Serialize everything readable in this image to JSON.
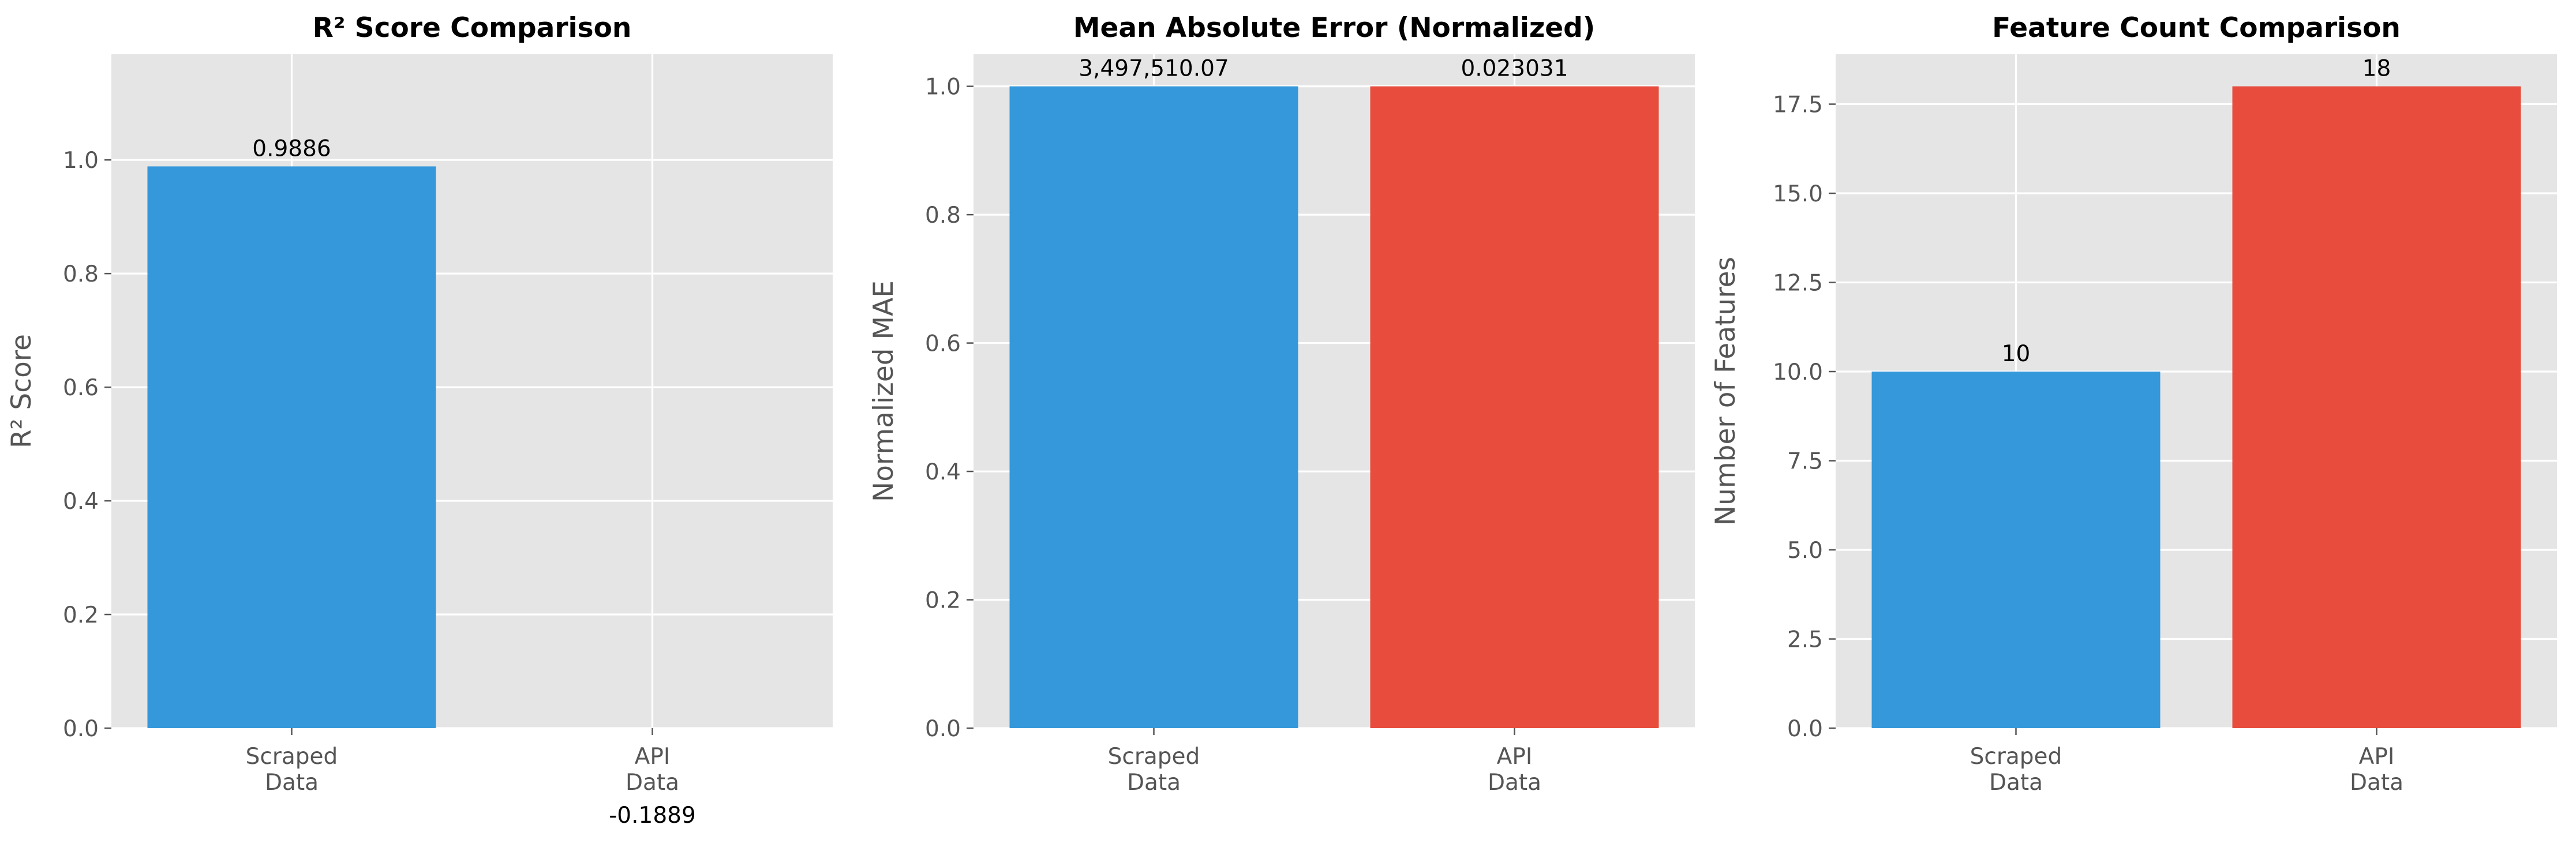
{
  "chart_data": [
    {
      "type": "bar",
      "title": "R² Score Comparison",
      "xlabel": "",
      "ylabel": "R² Score",
      "categories": [
        "Scraped Data",
        "API Data"
      ],
      "category_lines": [
        [
          "Scraped",
          "Data"
        ],
        [
          "API",
          "Data"
        ]
      ],
      "values": [
        0.9886,
        -0.1889
      ],
      "data_labels": [
        "0.9886",
        "-0.1889"
      ],
      "colors": [
        "#3498db",
        "#e74c3c"
      ],
      "ylim": [
        0,
        1.186
      ],
      "yticks": [
        0.0,
        0.2,
        0.4,
        0.6,
        0.8,
        1.0
      ],
      "ytick_labels": [
        "0.0",
        "0.2",
        "0.4",
        "0.6",
        "0.8",
        "1.0"
      ],
      "grid": true,
      "legend": false
    },
    {
      "type": "bar",
      "title": "Mean Absolute Error (Normalized)",
      "xlabel": "",
      "ylabel": "Normalized MAE",
      "categories": [
        "Scraped Data",
        "API Data"
      ],
      "category_lines": [
        [
          "Scraped",
          "Data"
        ],
        [
          "API",
          "Data"
        ]
      ],
      "values": [
        1.0,
        1.0
      ],
      "data_labels": [
        "3,497,510.07",
        "0.023031"
      ],
      "colors": [
        "#3498db",
        "#e74c3c"
      ],
      "ylim": [
        0,
        1.05
      ],
      "yticks": [
        0.0,
        0.2,
        0.4,
        0.6,
        0.8,
        1.0
      ],
      "ytick_labels": [
        "0.0",
        "0.2",
        "0.4",
        "0.6",
        "0.8",
        "1.0"
      ],
      "grid": true,
      "legend": false
    },
    {
      "type": "bar",
      "title": "Feature Count Comparison",
      "xlabel": "",
      "ylabel": "Number of Features",
      "categories": [
        "Scraped Data",
        "API Data"
      ],
      "category_lines": [
        [
          "Scraped",
          "Data"
        ],
        [
          "API",
          "Data"
        ]
      ],
      "values": [
        10,
        18
      ],
      "data_labels": [
        "10",
        "18"
      ],
      "colors": [
        "#3498db",
        "#e74c3c"
      ],
      "ylim": [
        0,
        18.9
      ],
      "yticks": [
        0.0,
        2.5,
        5.0,
        7.5,
        10.0,
        12.5,
        15.0,
        17.5
      ],
      "ytick_labels": [
        "0.0",
        "2.5",
        "5.0",
        "7.5",
        "10.0",
        "12.5",
        "15.0",
        "17.5"
      ],
      "grid": true,
      "legend": false
    }
  ]
}
